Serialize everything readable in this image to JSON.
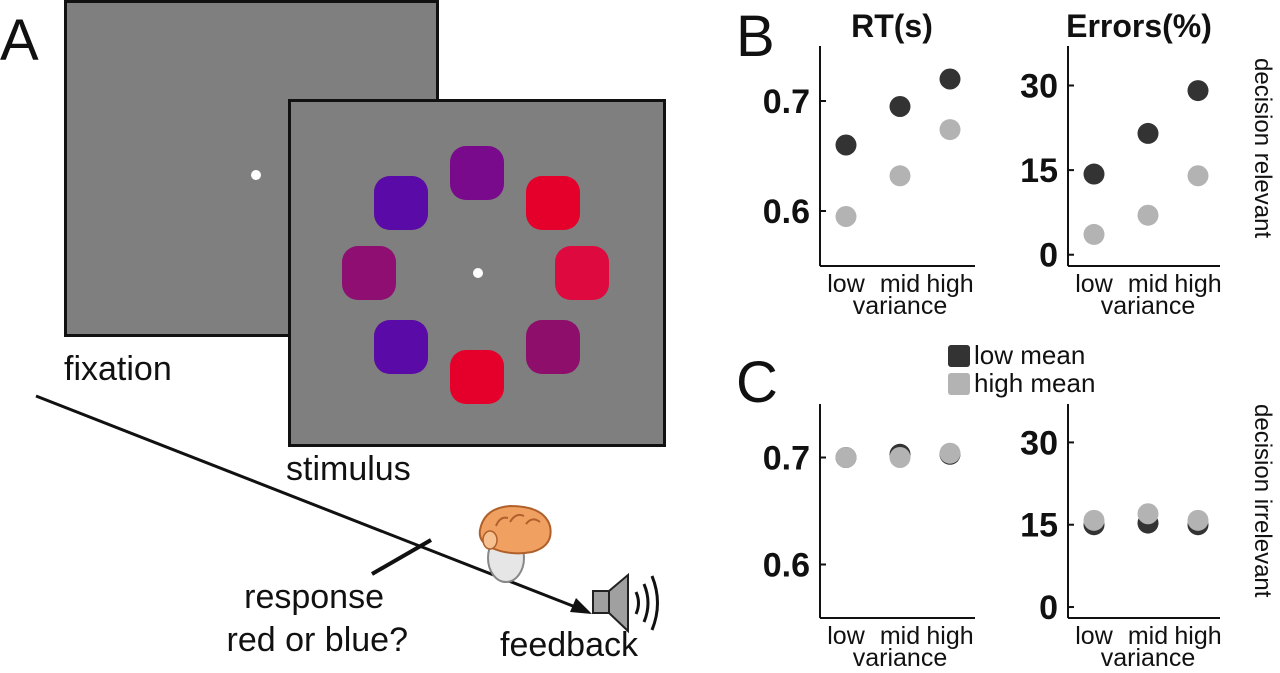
{
  "panels": {
    "a": "A",
    "b": "B",
    "c": "C"
  },
  "task": {
    "fixation_label": "fixation",
    "stimulus_label": "stimulus",
    "response_line1": "response",
    "response_line2": "red or blue?",
    "feedback_label": "feedback",
    "colors": {
      "screen_gray": "#7f7f7f",
      "patches": [
        "#7a0a8c",
        "#e5002b",
        "#de0a3f",
        "#8e0e6c",
        "#e5002b",
        "#5a0aa6",
        "#8e0e72",
        "#5a0aa6"
      ]
    },
    "icons": [
      "hand-on-mouse-icon",
      "speaker-icon"
    ]
  },
  "legend": {
    "items": [
      {
        "label": "low mean",
        "color": "#333333"
      },
      {
        "label": "high mean",
        "color": "#b3b3b3"
      }
    ]
  },
  "row_labels": {
    "top": "decision relevant",
    "bottom": "decision irrelevant"
  },
  "chart_data": [
    {
      "type": "scatter",
      "title": "RT(s)",
      "xlabel": "variance",
      "ylabel": "",
      "categories": [
        "low",
        "mid",
        "high"
      ],
      "ylim": [
        0.55,
        0.75
      ],
      "yticks": [
        "0.6",
        "0.7"
      ],
      "series": [
        {
          "name": "low mean",
          "color": "#333333",
          "values": [
            0.66,
            0.695,
            0.72
          ]
        },
        {
          "name": "high mean",
          "color": "#b3b3b3",
          "values": [
            0.595,
            0.632,
            0.674
          ]
        }
      ]
    },
    {
      "type": "scatter",
      "title": "Errors(%)",
      "xlabel": "variance",
      "ylabel": "",
      "categories": [
        "low",
        "mid",
        "high"
      ],
      "ylim": [
        -2,
        37
      ],
      "yticks": [
        "0",
        "15",
        "30"
      ],
      "series": [
        {
          "name": "low mean",
          "color": "#333333",
          "values": [
            14.3,
            21.5,
            29.1
          ]
        },
        {
          "name": "high mean",
          "color": "#b3b3b3",
          "values": [
            3.6,
            7.0,
            14.0
          ]
        }
      ]
    },
    {
      "type": "scatter",
      "title": "",
      "xlabel": "variance",
      "ylabel": "",
      "categories": [
        "low",
        "mid",
        "high"
      ],
      "ylim": [
        0.55,
        0.75
      ],
      "yticks": [
        "0.6",
        "0.7"
      ],
      "series": [
        {
          "name": "low mean",
          "color": "#333333",
          "values": [
            0.7,
            0.703,
            0.703
          ]
        },
        {
          "name": "high mean",
          "color": "#b3b3b3",
          "values": [
            0.7,
            0.7,
            0.704
          ]
        }
      ]
    },
    {
      "type": "scatter",
      "title": "",
      "xlabel": "variance",
      "ylabel": "",
      "categories": [
        "low",
        "mid",
        "high"
      ],
      "ylim": [
        -2,
        37
      ],
      "yticks": [
        "0",
        "15",
        "30"
      ],
      "series": [
        {
          "name": "low mean",
          "color": "#333333",
          "values": [
            15.0,
            15.3,
            15.0
          ]
        },
        {
          "name": "high mean",
          "color": "#b3b3b3",
          "values": [
            15.8,
            17.0,
            15.8
          ]
        }
      ]
    }
  ]
}
